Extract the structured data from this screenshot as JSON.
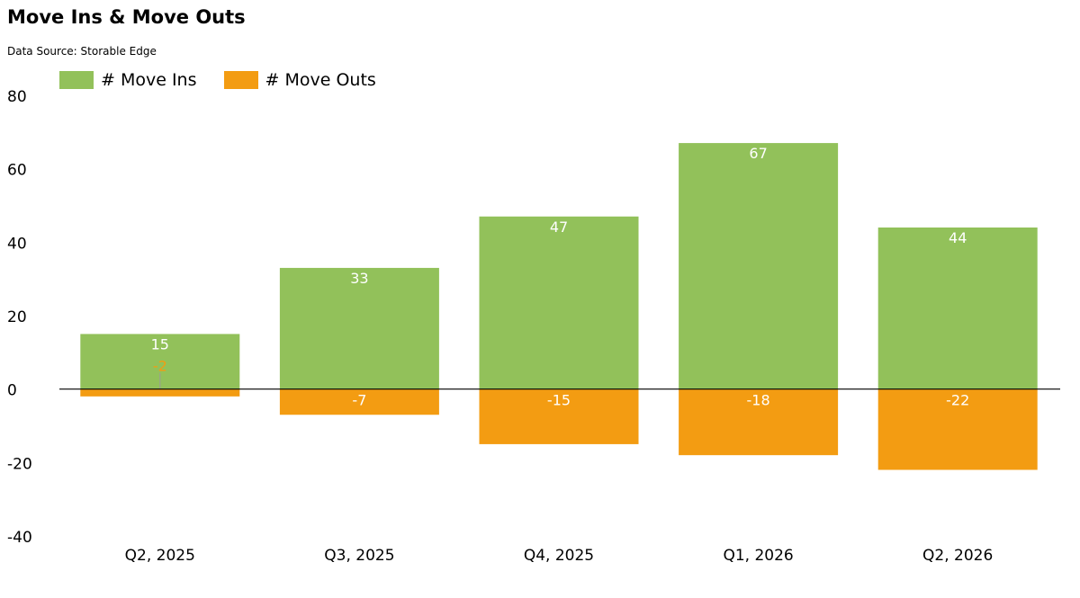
{
  "chart_data": {
    "type": "bar",
    "title": "Move Ins & Move Outs",
    "subtitle": "Data Source: Storable Edge",
    "categories": [
      "Q2, 2025",
      "Q3, 2025",
      "Q4, 2025",
      "Q1, 2026",
      "Q2, 2026"
    ],
    "series": [
      {
        "name": "# Move Ins",
        "color": "#92c15a",
        "values": [
          15,
          33,
          47,
          67,
          44
        ],
        "labels": [
          "15",
          "33",
          "47",
          "67",
          "44"
        ]
      },
      {
        "name": "# Move Outs",
        "color": "#f39c12",
        "values": [
          -2,
          -7,
          -15,
          -18,
          -22
        ],
        "labels": [
          "-2",
          "-7",
          "-15",
          "-18",
          "-22"
        ]
      }
    ],
    "ylim": [
      -40,
      80
    ],
    "yticks": [
      80,
      60,
      40,
      20,
      0,
      -20,
      -40
    ],
    "xlabel": "",
    "ylabel": "",
    "grid": false,
    "legend_position": "top-left",
    "stacked": true
  }
}
